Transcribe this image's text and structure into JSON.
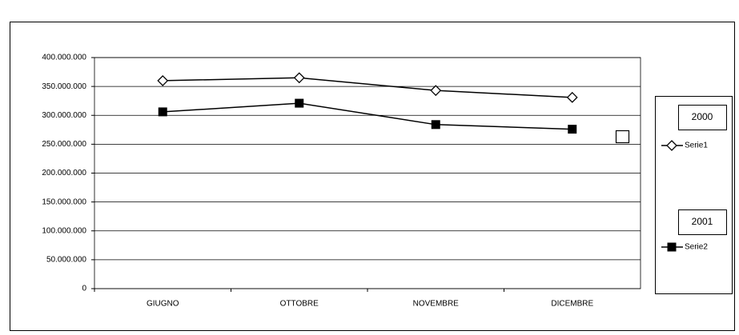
{
  "chart_data": {
    "type": "line",
    "categories": [
      "GIUGNO",
      "OTTOBRE",
      "NOVEMBRE",
      "DICEMBRE"
    ],
    "series": [
      {
        "name": "Serie1",
        "legend_title": "2000",
        "color": "#000000",
        "marker": "diamond",
        "values": [
          360000000,
          365000000,
          343000000,
          331000000
        ]
      },
      {
        "name": "Serie2",
        "legend_title": "2001",
        "color": "#000000",
        "marker": "square",
        "values": [
          306000000,
          321000000,
          284000000,
          276000000
        ]
      }
    ],
    "ylim": [
      0,
      400000000
    ],
    "yticks": [
      0,
      {
        "value": 50000000,
        "label": "50.000.000"
      },
      {
        "value": 100000000,
        "label": "100.000.000"
      },
      {
        "value": 150000000,
        "label": "150.000.000"
      },
      {
        "value": 200000000,
        "label": "200.000.000"
      },
      {
        "value": 250000000,
        "label": "250.000.000"
      },
      {
        "value": 300000000,
        "label": "300.000.000"
      },
      {
        "value": 350000000,
        "label": "350.000.000"
      },
      {
        "value": 400000000,
        "label": "400.000.000"
      }
    ],
    "grid": true
  }
}
